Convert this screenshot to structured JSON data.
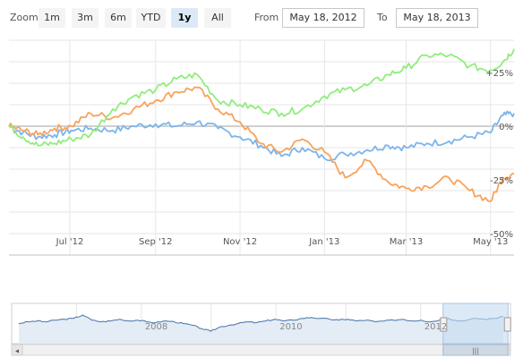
{
  "toolbar": {
    "zoom_label": "Zoom",
    "buttons": [
      "1m",
      "3m",
      "6m",
      "YTD",
      "1y",
      "All"
    ],
    "active_button": "1y",
    "from_label": "From",
    "from_value": "May 18, 2012",
    "to_label": "To",
    "to_value": "May 18, 2013"
  },
  "colors": {
    "series1": "#7cb5ec",
    "series2": "#f7a35c",
    "series3": "#90ed7d",
    "grid": "#e6e6e6",
    "zero_line": "#c0c0c0",
    "navigator_mask": "#c5dcf2",
    "navigator_line": "#4572a7"
  },
  "chart_data": {
    "type": "line",
    "x_tick_labels": [
      "Jul '12",
      "Sep '12",
      "Nov '12",
      "Jan '13",
      "Mar '13",
      "May '13"
    ],
    "y_tick_labels": [
      "+25%",
      "0%",
      "-25%",
      "-50%"
    ],
    "y_ticks": [
      25,
      0,
      -25,
      -50
    ],
    "ylim": [
      -60,
      40
    ],
    "x_range": [
      "2012-05-18",
      "2013-05-18"
    ],
    "series": [
      {
        "color": "#7cb5ec",
        "points": [
          [
            "2012-05-18",
            0
          ],
          [
            "2012-05-28",
            -3
          ],
          [
            "2012-06-08",
            -5
          ],
          [
            "2012-06-20",
            -4
          ],
          [
            "2012-07-02",
            -2
          ],
          [
            "2012-07-16",
            -1
          ],
          [
            "2012-08-01",
            -2
          ],
          [
            "2012-08-16",
            0
          ],
          [
            "2012-09-01",
            1
          ],
          [
            "2012-09-16",
            0
          ],
          [
            "2012-10-01",
            2
          ],
          [
            "2012-10-16",
            -1
          ],
          [
            "2012-11-01",
            -5
          ],
          [
            "2012-11-16",
            -9
          ],
          [
            "2012-12-01",
            -14
          ],
          [
            "2012-12-16",
            -10
          ],
          [
            "2013-01-01",
            -15
          ],
          [
            "2013-01-16",
            -13
          ],
          [
            "2013-02-01",
            -11
          ],
          [
            "2013-02-16",
            -9
          ],
          [
            "2013-03-01",
            -10
          ],
          [
            "2013-03-16",
            -8
          ],
          [
            "2013-04-01",
            -7
          ],
          [
            "2013-04-16",
            -5
          ],
          [
            "2013-05-01",
            -3
          ],
          [
            "2013-05-10",
            5
          ],
          [
            "2013-05-18",
            6
          ]
        ]
      },
      {
        "color": "#f7a35c",
        "points": [
          [
            "2012-05-18",
            0
          ],
          [
            "2012-05-28",
            -2
          ],
          [
            "2012-06-08",
            -4
          ],
          [
            "2012-06-20",
            -1
          ],
          [
            "2012-07-02",
            0
          ],
          [
            "2012-07-16",
            6
          ],
          [
            "2012-08-01",
            4
          ],
          [
            "2012-08-16",
            8
          ],
          [
            "2012-09-01",
            12
          ],
          [
            "2012-09-16",
            16
          ],
          [
            "2012-10-01",
            18
          ],
          [
            "2012-10-16",
            8
          ],
          [
            "2012-11-01",
            2
          ],
          [
            "2012-11-16",
            -8
          ],
          [
            "2012-12-01",
            -12
          ],
          [
            "2012-12-16",
            -6
          ],
          [
            "2013-01-01",
            -12
          ],
          [
            "2013-01-16",
            -24
          ],
          [
            "2013-02-01",
            -16
          ],
          [
            "2013-02-16",
            -26
          ],
          [
            "2013-03-01",
            -29
          ],
          [
            "2013-03-16",
            -28
          ],
          [
            "2013-04-01",
            -24
          ],
          [
            "2013-04-16",
            -30
          ],
          [
            "2013-05-01",
            -35
          ],
          [
            "2013-05-10",
            -24
          ],
          [
            "2013-05-18",
            -22
          ]
        ]
      },
      {
        "color": "#90ed7d",
        "points": [
          [
            "2012-05-18",
            0
          ],
          [
            "2012-05-28",
            -5
          ],
          [
            "2012-06-08",
            -9
          ],
          [
            "2012-06-20",
            -8
          ],
          [
            "2012-07-02",
            -6
          ],
          [
            "2012-07-16",
            -4
          ],
          [
            "2012-08-01",
            8
          ],
          [
            "2012-08-16",
            14
          ],
          [
            "2012-09-01",
            17
          ],
          [
            "2012-09-16",
            22
          ],
          [
            "2012-10-01",
            24
          ],
          [
            "2012-10-16",
            12
          ],
          [
            "2012-11-01",
            10
          ],
          [
            "2012-11-16",
            8
          ],
          [
            "2012-12-01",
            6
          ],
          [
            "2012-12-16",
            8
          ],
          [
            "2013-01-01",
            14
          ],
          [
            "2013-01-16",
            17
          ],
          [
            "2013-02-01",
            19
          ],
          [
            "2013-02-16",
            24
          ],
          [
            "2013-03-01",
            27
          ],
          [
            "2013-03-16",
            33
          ],
          [
            "2013-04-01",
            33
          ],
          [
            "2013-04-16",
            28
          ],
          [
            "2013-05-01",
            26
          ],
          [
            "2013-05-10",
            30
          ],
          [
            "2013-05-18",
            36
          ]
        ]
      }
    ]
  },
  "navigator": {
    "year_labels": [
      "2008",
      "2010",
      "2012"
    ],
    "series_points": [
      0,
      2,
      3,
      2,
      4,
      5,
      6,
      10,
      4,
      2,
      3,
      5,
      3,
      4,
      2,
      1,
      3,
      2,
      0,
      -2,
      -6,
      -9,
      -4,
      -2,
      0,
      2,
      1,
      3,
      5,
      3,
      4,
      6,
      7,
      6,
      5,
      4,
      5,
      3,
      4,
      2,
      3,
      4,
      5,
      3,
      4,
      2,
      4,
      6,
      3,
      4,
      6,
      5,
      6,
      8
    ],
    "selection_start": 0.865,
    "selection_end": 0.995
  },
  "scrollbar": {
    "left_arrow": "◂",
    "right_arrow": "▸",
    "grip": "|||"
  }
}
